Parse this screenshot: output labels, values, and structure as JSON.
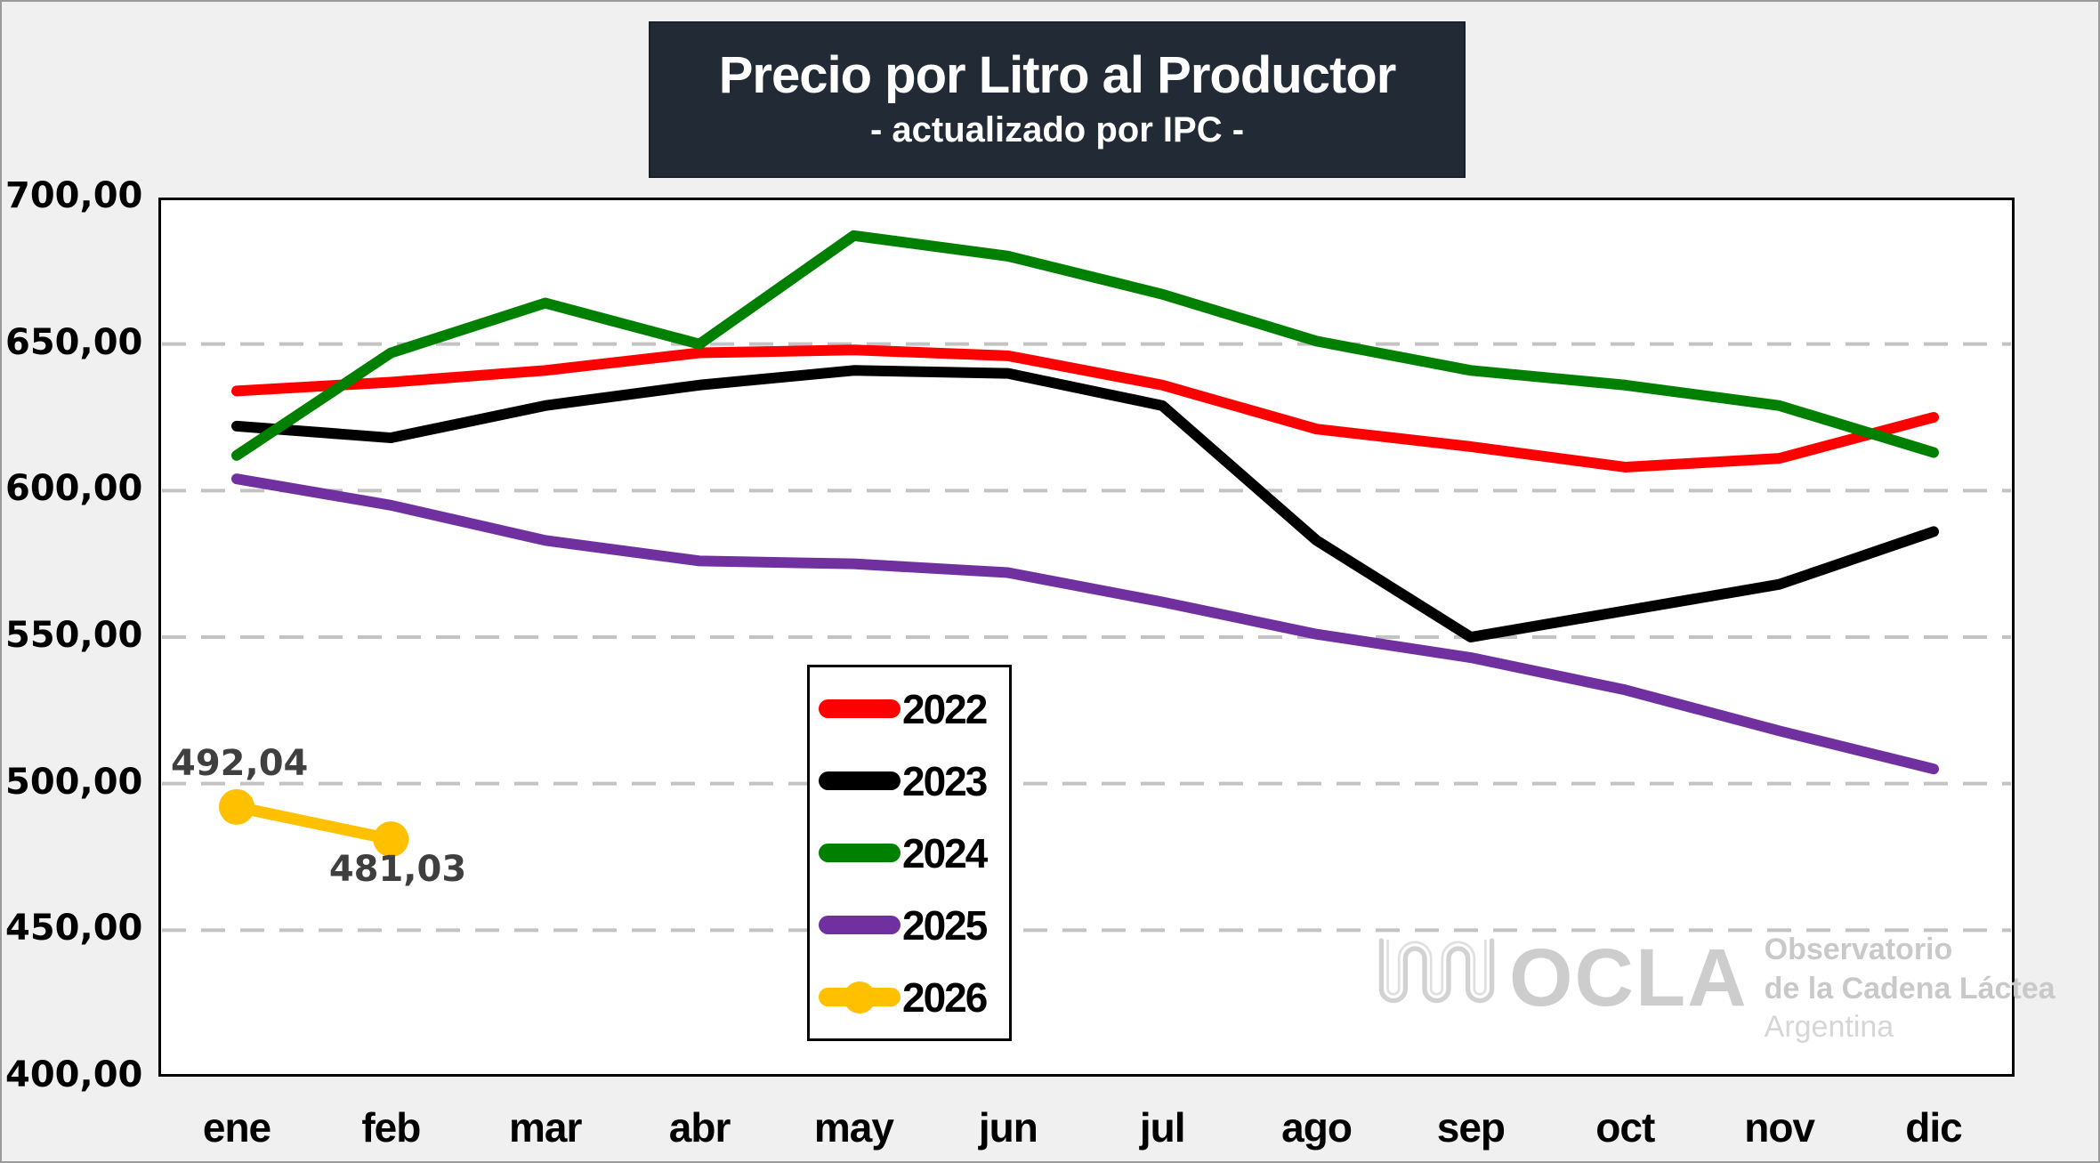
{
  "title": {
    "text": "Precio por Litro al Productor",
    "subtitle": "- actualizado por IPC -",
    "bg_color": "#222A35",
    "text_color": "#FFFFFF"
  },
  "watermark": {
    "brand": "OCLA",
    "line1": "Observatorio",
    "line2": "de la Cadena Láctea",
    "line3": "Argentina",
    "color": "#CDCDCD"
  },
  "colors": {
    "page_background": "#F0F0F0",
    "plot_background": "#FFFFFF",
    "gridline": "#C3C3C3",
    "data_label": "#3F3F3F"
  },
  "chart_data": {
    "type": "line",
    "title": "Precio por Litro al Productor - actualizado por IPC -",
    "categories": [
      "ene",
      "feb",
      "mar",
      "abr",
      "may",
      "jun",
      "jul",
      "ago",
      "sep",
      "oct",
      "nov",
      "dic"
    ],
    "ylim": [
      400,
      700
    ],
    "y_tick_step": 50,
    "y_tick_labels": [
      "700,00",
      "650,00",
      "600,00",
      "550,00",
      "500,00",
      "450,00",
      "400,00"
    ],
    "grid": "horizontal dashed",
    "legend_position": "inside-left box",
    "series": [
      {
        "name": "2022",
        "color": "#FF0000",
        "values": [
          634,
          637,
          641,
          647,
          648,
          646,
          636,
          621,
          615,
          608,
          611,
          625
        ]
      },
      {
        "name": "2023",
        "color": "#000000",
        "values": [
          622,
          618,
          629,
          636,
          641,
          640,
          629,
          583,
          550,
          559,
          568,
          586
        ]
      },
      {
        "name": "2024",
        "color": "#008000",
        "values": [
          612,
          647,
          664,
          650,
          687,
          680,
          667,
          651,
          641,
          636,
          629,
          613
        ]
      },
      {
        "name": "2025",
        "color": "#7030A0",
        "values": [
          604,
          595,
          583,
          576,
          575,
          572,
          562,
          551,
          543,
          532,
          518,
          505
        ]
      },
      {
        "name": "2026",
        "color": "#FFC000",
        "markers": true,
        "values": [
          492.04,
          481.03
        ],
        "data_labels": [
          "492,04",
          "481,03"
        ]
      }
    ]
  }
}
